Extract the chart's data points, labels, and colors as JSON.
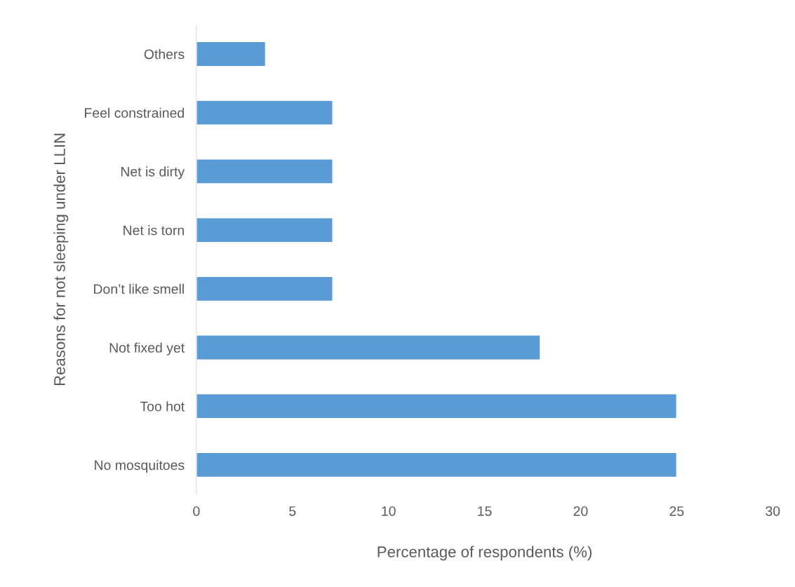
{
  "chart_data": {
    "type": "bar",
    "orientation": "horizontal",
    "categories": [
      "Others",
      "Feel constrained",
      "Net is dirty",
      "Net is torn",
      "Don’t like smell",
      "Not fixed yet",
      "Too hot",
      "No mosquitoes"
    ],
    "values": [
      3.6,
      7.1,
      7.1,
      7.1,
      7.1,
      17.9,
      25,
      25
    ],
    "color": "#5b9bd5",
    "xlim": [
      0,
      30
    ],
    "xticks": [
      0,
      5,
      10,
      15,
      20,
      25,
      30
    ],
    "xlabel": "Percentage of respondents (%)",
    "ylabel": "Reasons for not sleeping under LLIN",
    "grid": false,
    "legend": false
  }
}
